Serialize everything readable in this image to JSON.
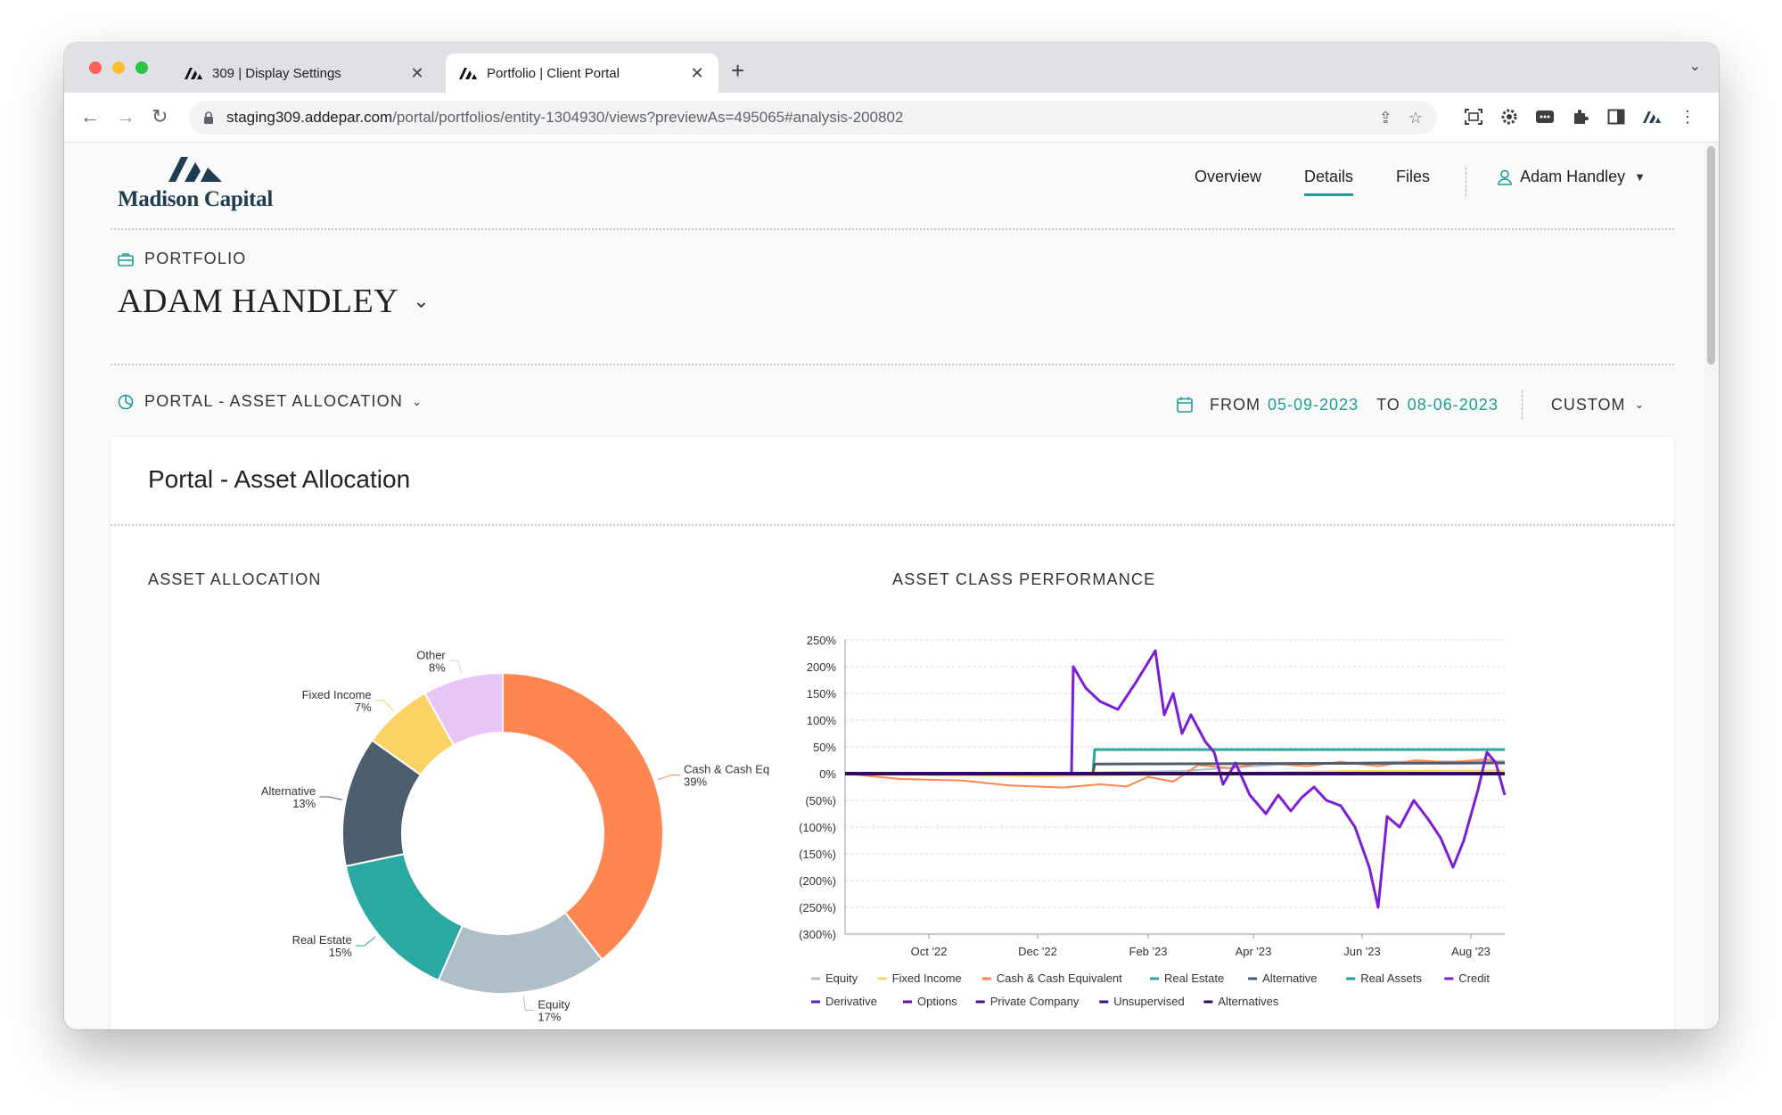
{
  "browser": {
    "tabs": [
      {
        "title": "309 | Display Settings",
        "active": false
      },
      {
        "title": "Portfolio | Client Portal",
        "active": true
      }
    ],
    "url_host": "staging309.addepar.com",
    "url_path": "/portal/portfolios/entity-1304930/views?previewAs=495065#analysis-200802"
  },
  "header": {
    "brand": "Madison Capital",
    "nav": [
      "Overview",
      "Details",
      "Files"
    ],
    "active_nav": "Details",
    "user": "Adam Handley"
  },
  "portfolio": {
    "label": "PORTFOLIO",
    "name": "ADAM HANDLEY"
  },
  "view": {
    "name": "PORTAL - ASSET ALLOCATION",
    "from_label": "FROM",
    "from": "05-09-2023",
    "to_label": "TO",
    "to": "08-06-2023",
    "period": "CUSTOM"
  },
  "card": {
    "title": "Portal - Asset Allocation",
    "allocation_title": "ASSET ALLOCATION",
    "performance_title": "ASSET CLASS PERFORMANCE"
  },
  "colors": {
    "accent": "#1f9c96",
    "brand": "#1f3d50"
  },
  "chart_data": [
    {
      "type": "pie",
      "variant": "donut",
      "slices": [
        {
          "label": "Cash & Cash Equivalent",
          "pct_label": "39%",
          "value": 39,
          "color": "#ff8651"
        },
        {
          "label": "Equity",
          "pct_label": "17%",
          "value": 17,
          "color": "#afbfc8"
        },
        {
          "label": "Real Estate",
          "pct_label": "15%",
          "value": 15,
          "color": "#2aa9a2"
        },
        {
          "label": "Alternative",
          "pct_label": "13%",
          "value": 13,
          "color": "#4c5e6d"
        },
        {
          "label": "Fixed Income",
          "pct_label": "7%",
          "value": 7,
          "color": "#fcd264"
        },
        {
          "label": "Other",
          "pct_label": "8%",
          "value": 8,
          "color": "#e9c4f7"
        }
      ]
    },
    {
      "type": "line",
      "y_ticks": [
        "250%",
        "200%",
        "150%",
        "100%",
        "50%",
        "0%",
        "(50%)",
        "(100%)",
        "(150%)",
        "(200%)",
        "(250%)",
        "(300%)"
      ],
      "ylim": [
        -300,
        250
      ],
      "x_ticks": [
        "Oct '22",
        "Dec '22",
        "Feb '23",
        "Apr '23",
        "Jun '23",
        "Aug '23"
      ],
      "xlim": [
        "2022-08-15",
        "2023-08-20"
      ],
      "x_tick_dates": [
        "2022-10-01",
        "2022-12-01",
        "2023-02-01",
        "2023-04-01",
        "2023-06-01",
        "2023-08-01"
      ],
      "grid": "horizontal",
      "legend_position": "bottom",
      "series": [
        {
          "name": "Equity",
          "color": "#afbfc8",
          "width": 2,
          "points": [
            [
              "2022-08-15",
              0
            ],
            [
              "2022-12-01",
              0
            ],
            [
              "2023-02-20",
              5
            ],
            [
              "2023-04-20",
              18
            ],
            [
              "2023-06-20",
              22
            ],
            [
              "2023-08-20",
              24
            ]
          ]
        },
        {
          "name": "Fixed Income",
          "color": "#fcd264",
          "width": 2,
          "points": [
            [
              "2022-08-15",
              0
            ],
            [
              "2022-10-01",
              -3
            ],
            [
              "2022-12-01",
              -5
            ],
            [
              "2023-02-01",
              -2
            ],
            [
              "2023-04-01",
              2
            ],
            [
              "2023-06-01",
              5
            ],
            [
              "2023-08-20",
              6
            ]
          ]
        },
        {
          "name": "Cash & Cash Equivalent",
          "color": "#ff8651",
          "width": 2,
          "points": [
            [
              "2022-08-15",
              0
            ],
            [
              "2022-09-15",
              -10
            ],
            [
              "2022-10-20",
              -13
            ],
            [
              "2022-11-15",
              -22
            ],
            [
              "2022-12-15",
              -26
            ],
            [
              "2023-01-05",
              -20
            ],
            [
              "2023-01-20",
              -24
            ],
            [
              "2023-02-01",
              -6
            ],
            [
              "2023-02-15",
              -15
            ],
            [
              "2023-03-01",
              16
            ],
            [
              "2023-03-20",
              10
            ],
            [
              "2023-04-05",
              20
            ],
            [
              "2023-05-01",
              14
            ],
            [
              "2023-05-20",
              22
            ],
            [
              "2023-06-10",
              14
            ],
            [
              "2023-07-01",
              25
            ],
            [
              "2023-07-20",
              21
            ],
            [
              "2023-08-10",
              27
            ],
            [
              "2023-08-20",
              18
            ]
          ]
        },
        {
          "name": "Real Estate",
          "color": "#2aa9a2",
          "width": 3,
          "points": [
            [
              "2022-08-15",
              0
            ],
            [
              "2023-01-01",
              0
            ],
            [
              "2023-01-02",
              45
            ],
            [
              "2023-08-20",
              45
            ]
          ]
        },
        {
          "name": "Alternative",
          "color": "#4c5e6d",
          "width": 3,
          "points": [
            [
              "2022-08-15",
              0
            ],
            [
              "2023-01-01",
              0
            ],
            [
              "2023-01-02",
              18
            ],
            [
              "2023-08-20",
              20
            ]
          ]
        },
        {
          "name": "Real Assets",
          "color": "#1f9c96",
          "width": 2,
          "points": [
            [
              "2022-08-15",
              0
            ],
            [
              "2023-08-20",
              0
            ]
          ]
        },
        {
          "name": "Credit",
          "color": "#7b1fd6",
          "width": 3,
          "points": [
            [
              "2022-08-15",
              0
            ],
            [
              "2022-12-20",
              0
            ],
            [
              "2022-12-21",
              200
            ],
            [
              "2022-12-28",
              160
            ],
            [
              "2023-01-05",
              135
            ],
            [
              "2023-01-15",
              120
            ],
            [
              "2023-01-25",
              170
            ],
            [
              "2023-02-05",
              230
            ],
            [
              "2023-02-10",
              110
            ],
            [
              "2023-02-15",
              150
            ],
            [
              "2023-02-20",
              75
            ],
            [
              "2023-02-25",
              110
            ],
            [
              "2023-03-05",
              60
            ],
            [
              "2023-03-10",
              40
            ],
            [
              "2023-03-15",
              -20
            ],
            [
              "2023-03-22",
              20
            ],
            [
              "2023-03-30",
              -40
            ],
            [
              "2023-04-08",
              -75
            ],
            [
              "2023-04-15",
              -40
            ],
            [
              "2023-04-22",
              -70
            ],
            [
              "2023-04-28",
              -45
            ],
            [
              "2023-05-05",
              -25
            ],
            [
              "2023-05-12",
              -50
            ],
            [
              "2023-05-20",
              -60
            ],
            [
              "2023-05-28",
              -100
            ],
            [
              "2023-06-05",
              -175
            ],
            [
              "2023-06-10",
              -250
            ],
            [
              "2023-06-15",
              -80
            ],
            [
              "2023-06-22",
              -100
            ],
            [
              "2023-06-30",
              -50
            ],
            [
              "2023-07-08",
              -85
            ],
            [
              "2023-07-15",
              -120
            ],
            [
              "2023-07-22",
              -175
            ],
            [
              "2023-07-28",
              -125
            ],
            [
              "2023-08-05",
              -30
            ],
            [
              "2023-08-10",
              40
            ],
            [
              "2023-08-15",
              20
            ],
            [
              "2023-08-20",
              -40
            ]
          ]
        },
        {
          "name": "Derivative",
          "color": "#6a1bb8",
          "width": 2,
          "points": [
            [
              "2022-08-15",
              0
            ],
            [
              "2023-08-20",
              0
            ]
          ]
        },
        {
          "name": "Options",
          "color": "#5b17a0",
          "width": 2,
          "points": [
            [
              "2022-08-15",
              0
            ],
            [
              "2023-08-20",
              0
            ]
          ]
        },
        {
          "name": "Private Company",
          "color": "#4d1489",
          "width": 2,
          "points": [
            [
              "2022-08-15",
              0
            ],
            [
              "2023-08-20",
              0
            ]
          ]
        },
        {
          "name": "Unsupervised",
          "color": "#3f1072",
          "width": 3,
          "points": [
            [
              "2022-08-15",
              0
            ],
            [
              "2023-08-20",
              0
            ]
          ]
        },
        {
          "name": "Alternatives",
          "color": "#320c5c",
          "width": 4,
          "points": [
            [
              "2022-08-15",
              0
            ],
            [
              "2023-08-20",
              0
            ]
          ]
        }
      ]
    }
  ]
}
